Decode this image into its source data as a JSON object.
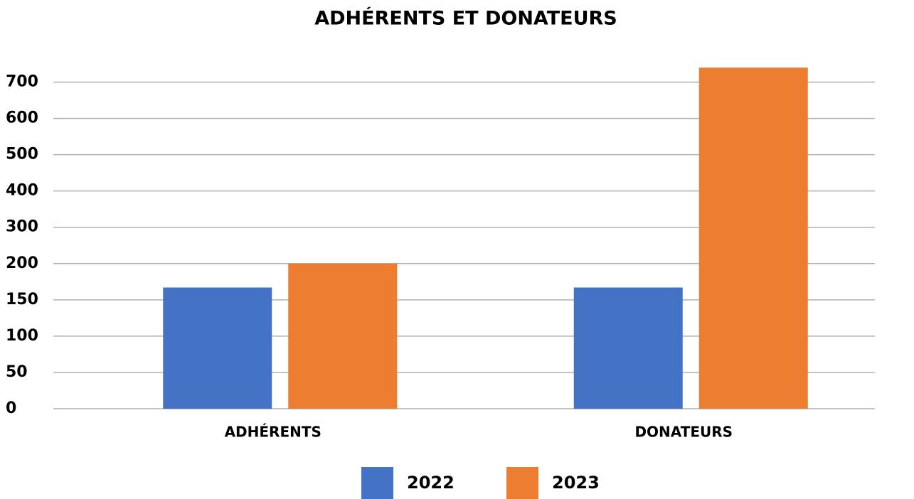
{
  "chart_data": {
    "type": "bar",
    "title": "ADHÉRENTS ET DONATEURS",
    "categories": [
      "ADHÉRENTS",
      "DONATEURS"
    ],
    "series": [
      {
        "name": "2022",
        "color": "#4472c4",
        "values": [
          167,
          167
        ]
      },
      {
        "name": "2023",
        "color": "#ed7d31",
        "values": [
          200,
          740
        ]
      }
    ],
    "ylim": [
      0,
      750
    ],
    "yticks": [
      0,
      50,
      100,
      150,
      200,
      300,
      400,
      500,
      600,
      700
    ],
    "grid": true,
    "legend": "bottom"
  }
}
